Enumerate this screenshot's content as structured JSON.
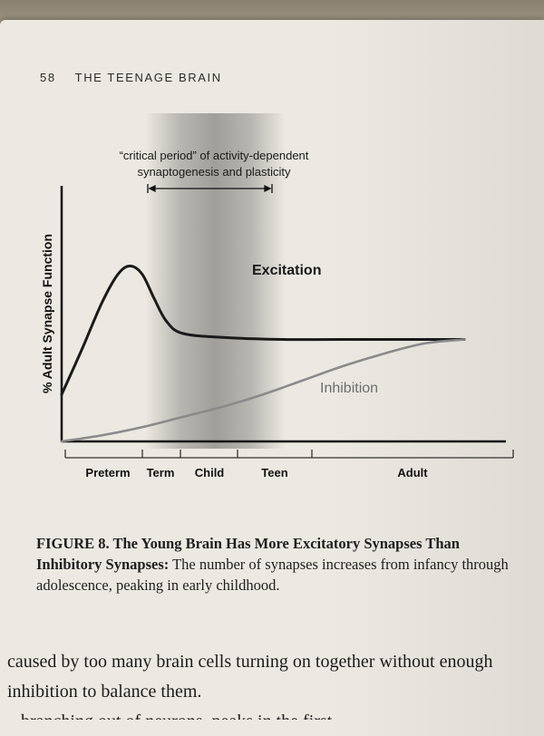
{
  "book": {
    "page_number": "58",
    "running_head": "THE TEENAGE BRAIN"
  },
  "chart_data": {
    "type": "line",
    "ylabel": "% Adult Synapse Function",
    "annotation": {
      "line1": "“critical period” of activity-dependent",
      "line2": "synaptogenesis and plasticity",
      "range": [
        "Term",
        "Teen"
      ]
    },
    "x_tick_labels": [
      "Preterm",
      "Term",
      "Child",
      "Teen",
      "Adult"
    ],
    "series": [
      {
        "name": "Excitation",
        "color": "#1a1a1a",
        "x": [
          0,
          5,
          10,
          14,
          17,
          20,
          23,
          26,
          30,
          40,
          55,
          70,
          100
        ],
        "y": [
          23,
          45,
          68,
          82,
          86,
          82,
          70,
          59,
          53,
          51,
          50,
          50,
          50
        ]
      },
      {
        "name": "Inhibition",
        "color": "#8a8a8a",
        "x": [
          0,
          10,
          20,
          30,
          40,
          50,
          60,
          70,
          80,
          90,
          100
        ],
        "y": [
          0,
          3,
          7,
          12,
          17,
          23,
          30,
          37,
          43,
          48,
          50
        ]
      }
    ],
    "xlim": [
      0,
      100
    ],
    "ylim": [
      0,
      100
    ],
    "highlight_band": "Child",
    "grid": false
  },
  "caption": {
    "label": "FIGURE 8. The Young Brain Has More Excitatory Synapses Than Inhibitory Synapses:",
    "text": "The number of synapses increases from infancy through adolescence, peaking in early childhood."
  },
  "body": {
    "line1": "caused by too many brain cells turning on together without enough",
    "line2": "inhibition to balance them.",
    "line3": "...branching out of neurons, peaks in the first"
  }
}
